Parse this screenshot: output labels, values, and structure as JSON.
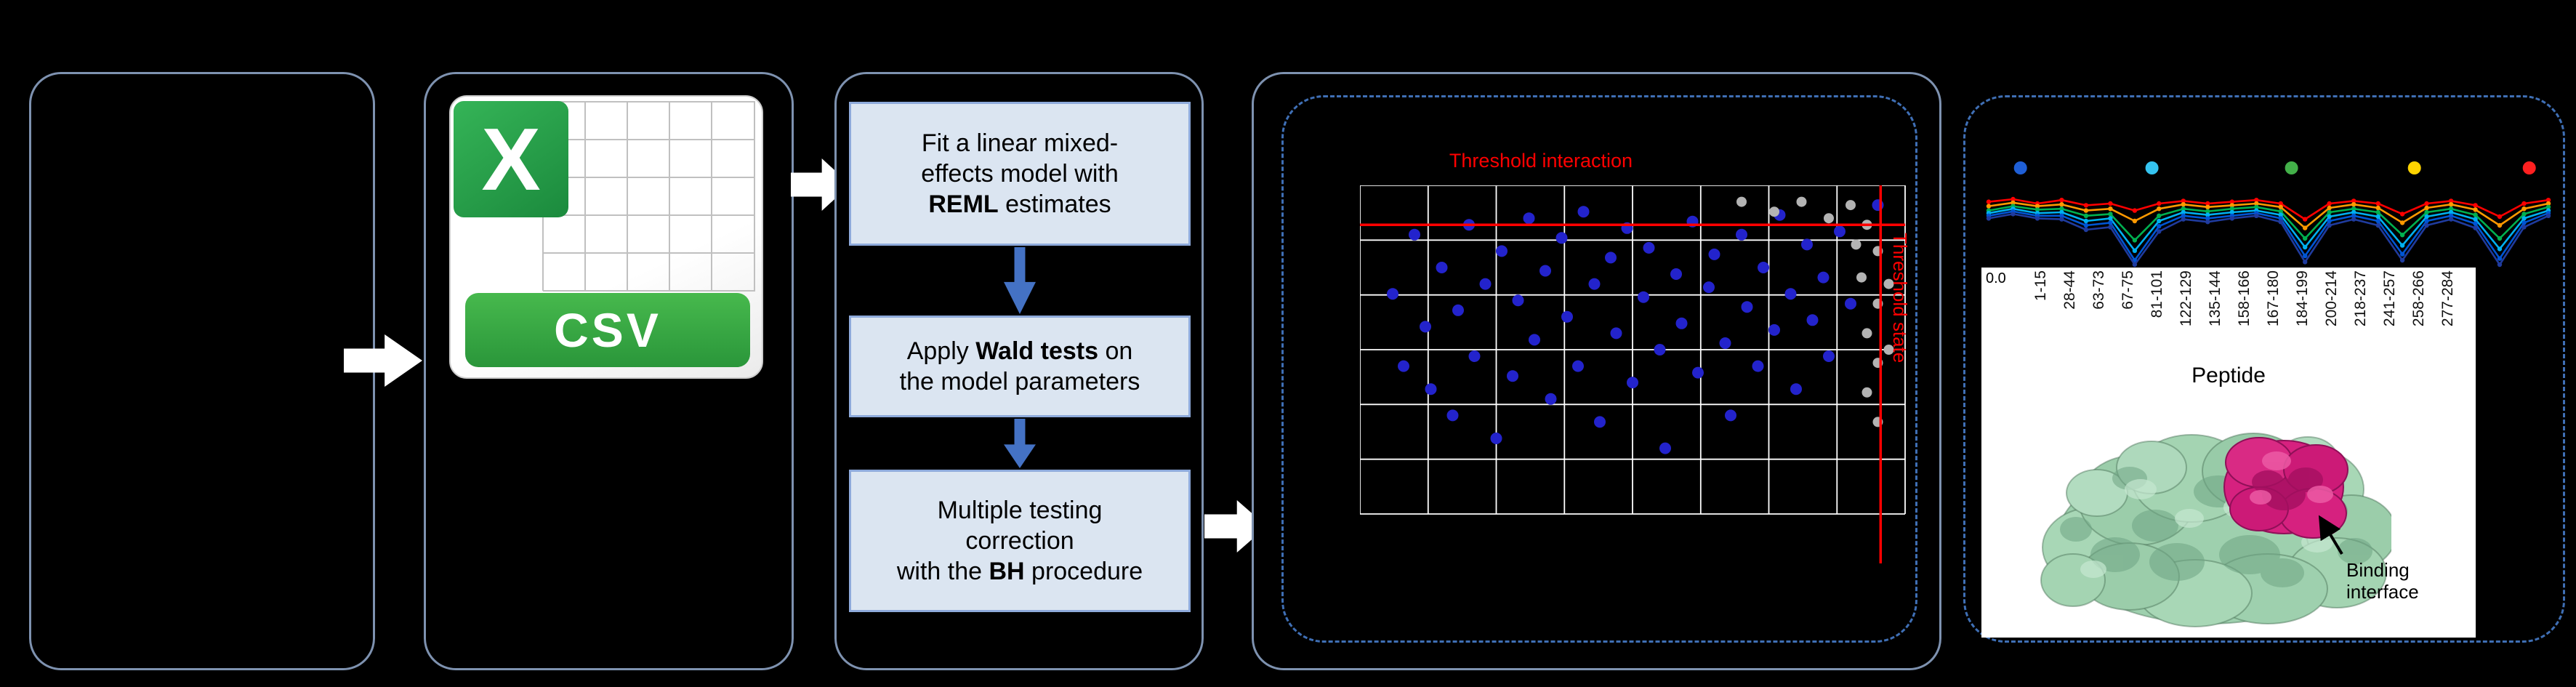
{
  "figure": {
    "background": "#000000",
    "panel_border_color": "#7e92b0",
    "dashed_border_color": "#3f6fb5",
    "flow_arrow_color": "#ffffff"
  },
  "csv_icon": {
    "x_label": "X",
    "format_label": "CSV",
    "green": "#2a963a"
  },
  "workflow": {
    "box_bg": "#dbe5f1",
    "box_border": "#8eaadb",
    "down_arrow_color": "#4472c4",
    "steps": [
      {
        "segments": [
          {
            "text": "Fit a linear mixed-\neffects model with\n"
          },
          {
            "text": "REML",
            "bold": true
          },
          {
            "text": " estimates"
          }
        ]
      },
      {
        "segments": [
          {
            "text": "Apply "
          },
          {
            "text": "Wald tests",
            "bold": true
          },
          {
            "text": " on\nthe model parameters"
          }
        ]
      },
      {
        "segments": [
          {
            "text": "Multiple testing\ncorrection\nwith the "
          },
          {
            "text": "BH",
            "bold": true
          },
          {
            "text": " procedure"
          }
        ]
      }
    ]
  },
  "chart_data": [
    {
      "type": "scatter",
      "title": "Threshold interaction",
      "right_label": "Threshold state",
      "title_color": "#ff0000",
      "grid": {
        "cols": 8,
        "rows": 6,
        "line_color": "#ffffff"
      },
      "thresholds": {
        "horizontal_y": 0.12,
        "vertical_x": 0.955,
        "color": "#ff0000"
      },
      "series": [
        {
          "name": "peptides",
          "color": "#2323cc",
          "r": 8,
          "points": [
            [
              0.06,
              0.33
            ],
            [
              0.08,
              0.55
            ],
            [
              0.1,
              0.15
            ],
            [
              0.12,
              0.43
            ],
            [
              0.13,
              0.62
            ],
            [
              0.15,
              0.25
            ],
            [
              0.17,
              0.7
            ],
            [
              0.18,
              0.38
            ],
            [
              0.2,
              0.12
            ],
            [
              0.21,
              0.52
            ],
            [
              0.23,
              0.3
            ],
            [
              0.25,
              0.77
            ],
            [
              0.26,
              0.2
            ],
            [
              0.28,
              0.58
            ],
            [
              0.29,
              0.35
            ],
            [
              0.31,
              0.1
            ],
            [
              0.32,
              0.47
            ],
            [
              0.34,
              0.26
            ],
            [
              0.35,
              0.65
            ],
            [
              0.37,
              0.16
            ],
            [
              0.38,
              0.4
            ],
            [
              0.4,
              0.55
            ],
            [
              0.41,
              0.08
            ],
            [
              0.43,
              0.3
            ],
            [
              0.44,
              0.72
            ],
            [
              0.46,
              0.22
            ],
            [
              0.47,
              0.45
            ],
            [
              0.49,
              0.13
            ],
            [
              0.5,
              0.6
            ],
            [
              0.52,
              0.34
            ],
            [
              0.53,
              0.19
            ],
            [
              0.55,
              0.5
            ],
            [
              0.56,
              0.8
            ],
            [
              0.58,
              0.27
            ],
            [
              0.59,
              0.42
            ],
            [
              0.61,
              0.11
            ],
            [
              0.62,
              0.57
            ],
            [
              0.64,
              0.31
            ],
            [
              0.65,
              0.21
            ],
            [
              0.67,
              0.48
            ],
            [
              0.68,
              0.7
            ],
            [
              0.7,
              0.15
            ],
            [
              0.71,
              0.37
            ],
            [
              0.73,
              0.55
            ],
            [
              0.74,
              0.25
            ],
            [
              0.76,
              0.44
            ],
            [
              0.77,
              0.09
            ],
            [
              0.79,
              0.33
            ],
            [
              0.8,
              0.62
            ],
            [
              0.82,
              0.18
            ],
            [
              0.83,
              0.41
            ],
            [
              0.85,
              0.28
            ],
            [
              0.86,
              0.52
            ],
            [
              0.88,
              0.14
            ],
            [
              0.9,
              0.36
            ],
            [
              0.95,
              0.06
            ]
          ]
        },
        {
          "name": "filtered-peptides",
          "color": "#b3b3b3",
          "r": 7,
          "points": [
            [
              0.7,
              0.05
            ],
            [
              0.76,
              0.08
            ],
            [
              0.81,
              0.05
            ],
            [
              0.86,
              0.1
            ],
            [
              0.9,
              0.06
            ],
            [
              0.93,
              0.12
            ],
            [
              0.95,
              0.2
            ],
            [
              0.92,
              0.28
            ],
            [
              0.95,
              0.36
            ],
            [
              0.93,
              0.45
            ],
            [
              0.95,
              0.54
            ],
            [
              0.93,
              0.63
            ],
            [
              0.95,
              0.72
            ],
            [
              0.91,
              0.18
            ],
            [
              0.97,
              0.3
            ],
            [
              0.97,
              0.5
            ]
          ]
        }
      ]
    },
    {
      "type": "line",
      "name": "deuterium-uptake-profiles",
      "y_tick_label": "0.0",
      "x_axis_title": "Peptide",
      "x_tick_labels": [
        "1-15",
        "28-44",
        "63-73",
        "67-75",
        "81-101",
        "122-129",
        "135-144",
        "158-166",
        "167-180",
        "184-199",
        "200-214",
        "218-237",
        "241-257",
        "258-266",
        "277-284"
      ],
      "top_dots": [
        {
          "x": 0.068,
          "color": "#1f5fd6"
        },
        {
          "x": 0.297,
          "color": "#35c4f0"
        },
        {
          "x": 0.54,
          "color": "#43b049"
        },
        {
          "x": 0.754,
          "color": "#ffd400"
        },
        {
          "x": 0.954,
          "color": "#ff2020"
        }
      ],
      "series": [
        {
          "name": "red",
          "color": "#ff0000",
          "values": [
            0.28,
            0.25,
            0.3,
            0.26,
            0.32,
            0.3,
            0.38,
            0.3,
            0.27,
            0.3,
            0.28,
            0.26,
            0.3,
            0.48,
            0.3,
            0.27,
            0.3,
            0.42,
            0.3,
            0.27,
            0.32,
            0.45,
            0.3,
            0.26
          ]
        },
        {
          "name": "orange",
          "color": "#ff9900",
          "values": [
            0.33,
            0.29,
            0.33,
            0.31,
            0.38,
            0.36,
            0.5,
            0.36,
            0.31,
            0.34,
            0.32,
            0.3,
            0.34,
            0.58,
            0.35,
            0.31,
            0.35,
            0.52,
            0.35,
            0.31,
            0.37,
            0.55,
            0.36,
            0.3
          ]
        },
        {
          "name": "green",
          "color": "#00b050",
          "values": [
            0.38,
            0.33,
            0.37,
            0.36,
            0.44,
            0.42,
            0.72,
            0.44,
            0.36,
            0.39,
            0.36,
            0.34,
            0.39,
            0.7,
            0.4,
            0.36,
            0.4,
            0.66,
            0.4,
            0.36,
            0.43,
            0.7,
            0.42,
            0.34
          ]
        },
        {
          "name": "cyan",
          "color": "#00b0f0",
          "values": [
            0.41,
            0.36,
            0.41,
            0.4,
            0.5,
            0.47,
            0.84,
            0.5,
            0.4,
            0.43,
            0.4,
            0.38,
            0.43,
            0.8,
            0.45,
            0.4,
            0.45,
            0.78,
            0.45,
            0.4,
            0.48,
            0.82,
            0.47,
            0.38
          ]
        },
        {
          "name": "blue",
          "color": "#0055d4",
          "values": [
            0.44,
            0.39,
            0.44,
            0.44,
            0.55,
            0.52,
            0.95,
            0.56,
            0.44,
            0.47,
            0.44,
            0.41,
            0.47,
            0.9,
            0.5,
            0.44,
            0.5,
            0.88,
            0.5,
            0.44,
            0.53,
            0.93,
            0.52,
            0.41
          ]
        },
        {
          "name": "navy",
          "color": "#1f3b9e",
          "values": [
            0.47,
            0.42,
            0.47,
            0.48,
            0.6,
            0.57,
            1.0,
            0.62,
            0.48,
            0.51,
            0.47,
            0.44,
            0.51,
            0.97,
            0.55,
            0.48,
            0.55,
            0.95,
            0.55,
            0.48,
            0.58,
            1.0,
            0.57,
            0.44
          ]
        }
      ]
    }
  ],
  "structure": {
    "annotation": "Binding interface",
    "surface_color": "#9ed0ae",
    "interface_color": "#d6217f"
  }
}
